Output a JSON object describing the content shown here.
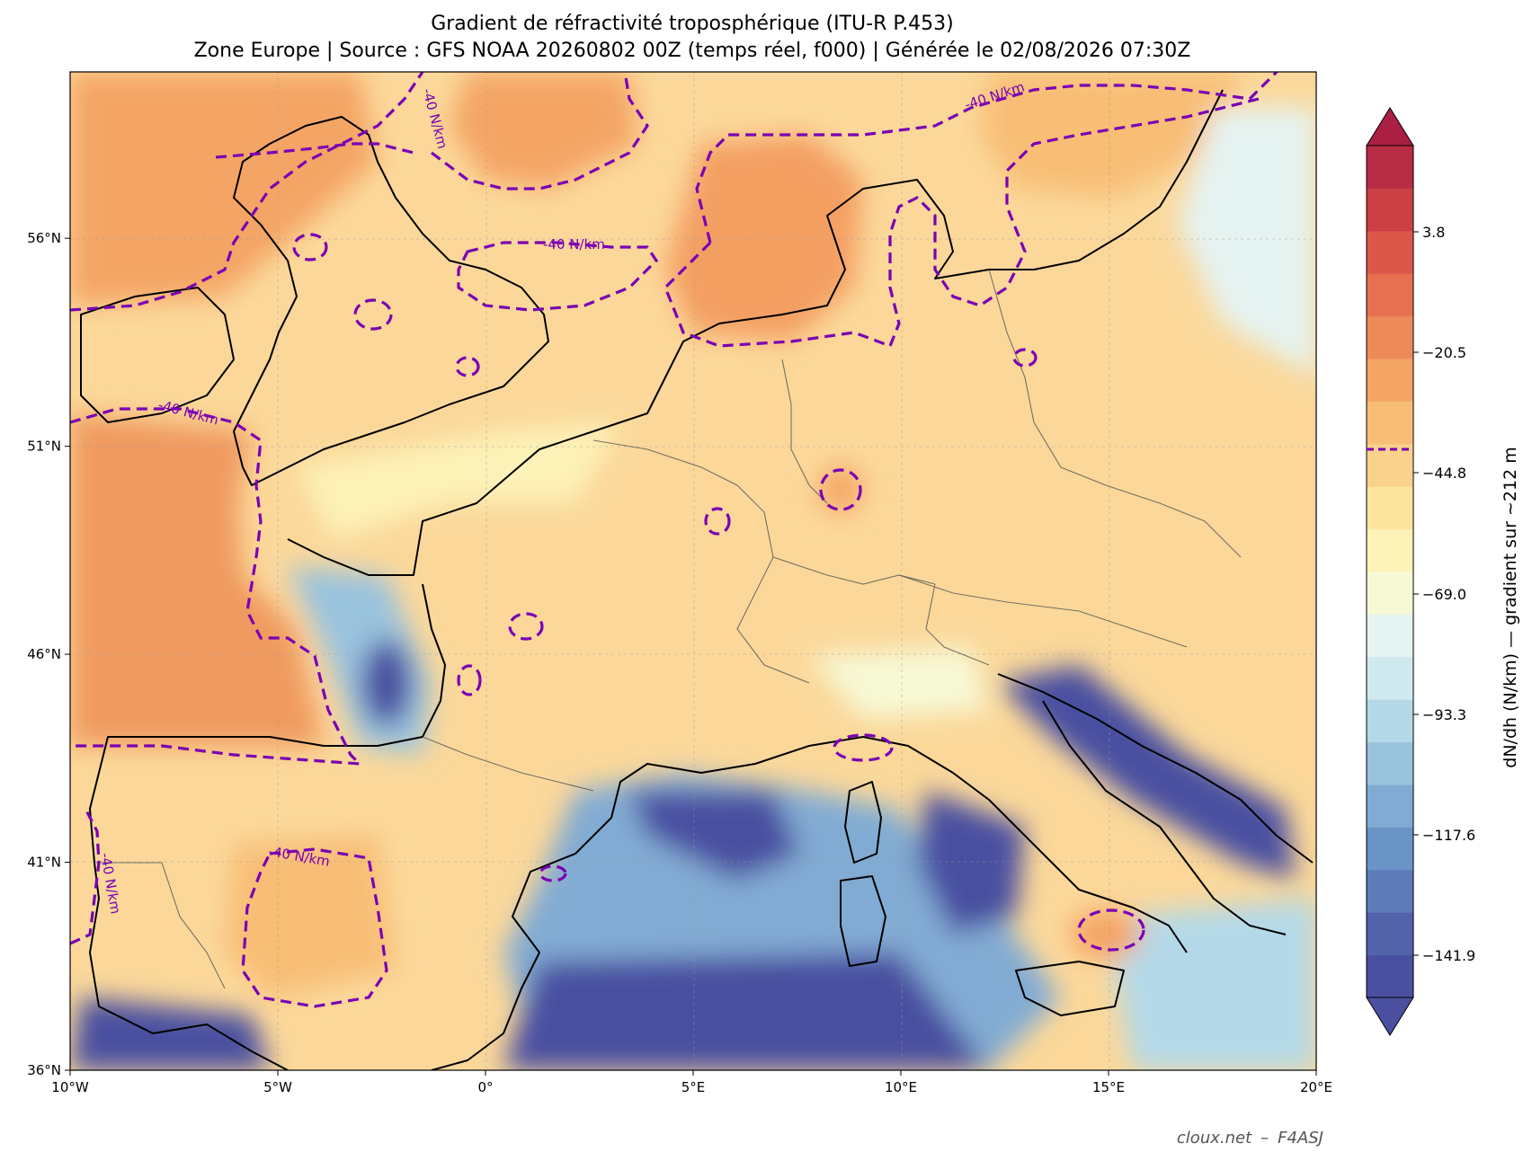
{
  "title": {
    "line1": "Gradient de réfractivité troposphérique (ITU-R P.453)",
    "line2": "Zone Europe | Source : GFS NOAA 20260802 00Z (temps réel, f000) | Générée le 02/08/2026 07:30Z"
  },
  "map": {
    "lon_range": [
      -10,
      20
    ],
    "lat_range": [
      36,
      60
    ],
    "x_ticks": [
      "10°W",
      "5°W",
      "0°",
      "5°E",
      "10°E",
      "15°E",
      "20°E"
    ],
    "y_ticks": [
      "36°N",
      "41°N",
      "46°N",
      "51°N",
      "56°N"
    ],
    "contour_label": "-40 N/km",
    "contour_color": "#7a00b4",
    "grid": true
  },
  "colorbar": {
    "label": "dN/dh (N/km) — gradient sur ~212 m",
    "ticks": [
      "3.8",
      "−20.5",
      "−44.8",
      "−69.0",
      "−93.3",
      "−117.6",
      "−141.9"
    ],
    "colors": [
      "#4a4fa0",
      "#5363a9",
      "#5d7bb8",
      "#6a93c6",
      "#82abd3",
      "#9ac3de",
      "#b3d9e8",
      "#cfe9ef",
      "#e5f3f1",
      "#f7f9d6",
      "#fdf2b8",
      "#fde5a0",
      "#fbd28b",
      "#f8be76",
      "#f4a565",
      "#ee8a58",
      "#e6704f",
      "#db574a",
      "#cc3f45",
      "#b82c43"
    ]
  },
  "credit": {
    "site": "cloux.net",
    "separator": "–",
    "call": "F4ASJ"
  }
}
